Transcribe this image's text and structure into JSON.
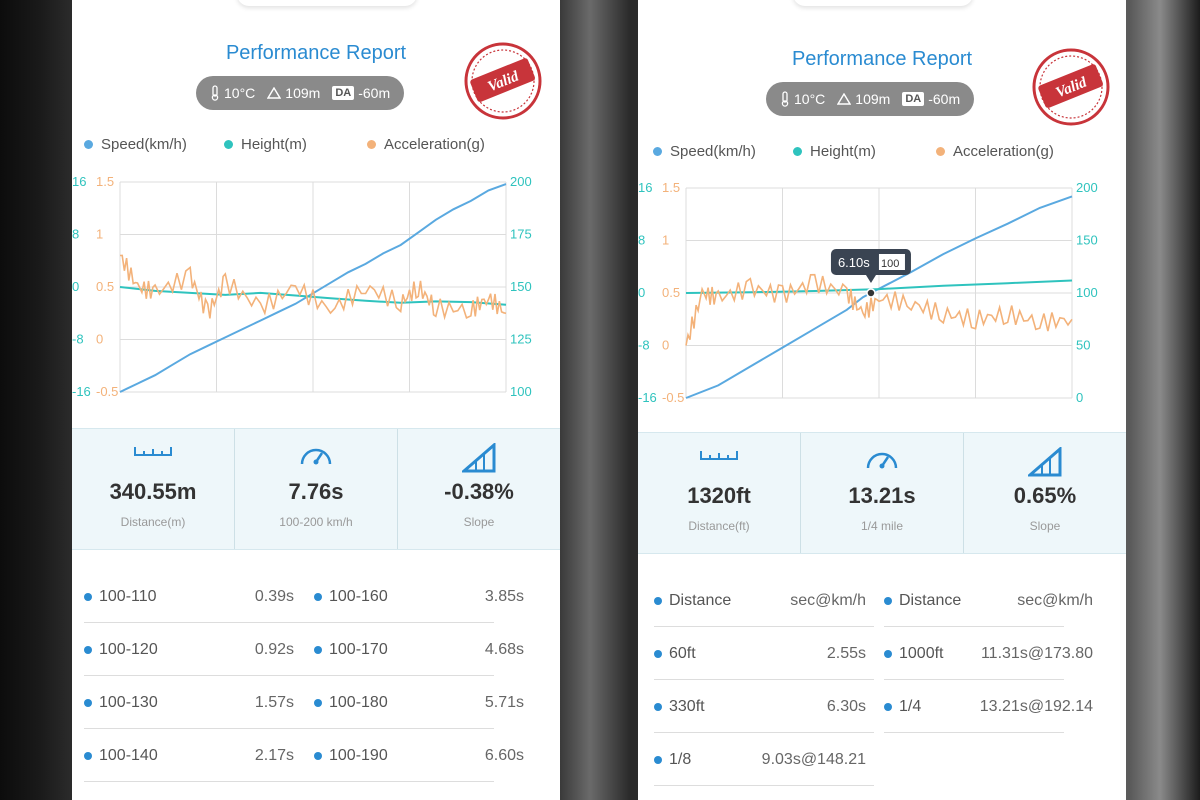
{
  "colors": {
    "speed": "#5aa9e0",
    "height": "#2fc3be",
    "accel": "#f3b27a",
    "title": "#2a8bd1"
  },
  "icons": [
    "thermometer-icon",
    "mountain-icon",
    "ruler-icon",
    "speedometer-icon",
    "slope-icon",
    "valid-stamp-icon"
  ],
  "left": {
    "title": "Performance Report",
    "conditions": {
      "temp": "10°C",
      "altitude": "109m",
      "da_badge": "DA",
      "da_value": "-60m"
    },
    "stamp": "Valid",
    "legend": {
      "speed": "Speed(km/h)",
      "height": "Height(m)",
      "accel": "Acceleration(g)"
    },
    "stats": [
      {
        "value": "340.55m",
        "label": "Distance(m)"
      },
      {
        "value": "7.76s",
        "label": "100-200 km/h"
      },
      {
        "value": "-0.38%",
        "label": "Slope"
      }
    ],
    "rows": [
      {
        "a_label": "100-110",
        "a_val": "0.39s",
        "b_label": "100-160",
        "b_val": "3.85s"
      },
      {
        "a_label": "100-120",
        "a_val": "0.92s",
        "b_label": "100-170",
        "b_val": "4.68s"
      },
      {
        "a_label": "100-130",
        "a_val": "1.57s",
        "b_label": "100-180",
        "b_val": "5.71s"
      },
      {
        "a_label": "100-140",
        "a_val": "2.17s",
        "b_label": "100-190",
        "b_val": "6.60s"
      }
    ]
  },
  "right": {
    "title": "Performance Report",
    "conditions": {
      "temp": "10°C",
      "altitude": "109m",
      "da_badge": "DA",
      "da_value": "-60m"
    },
    "stamp": "Valid",
    "legend": {
      "speed": "Speed(km/h)",
      "height": "Height(m)",
      "accel": "Acceleration(g)"
    },
    "tooltip": {
      "time": "6.10s",
      "speed": "100"
    },
    "stats": [
      {
        "value": "1320ft",
        "label": "Distance(ft)"
      },
      {
        "value": "13.21s",
        "label": "1/4 mile"
      },
      {
        "value": "0.65%",
        "label": "Slope"
      }
    ],
    "header": {
      "a_label": "Distance",
      "a_val": "sec@km/h",
      "b_label": "Distance",
      "b_val": "sec@km/h"
    },
    "rows": [
      {
        "a_label": "60ft",
        "a_val": "2.55s",
        "b_label": "1000ft",
        "b_val": "11.31s@173.80"
      },
      {
        "a_label": "330ft",
        "a_val": "6.30s",
        "b_label": "1/4",
        "b_val": "13.21s@192.14"
      },
      {
        "a_label": "1/8",
        "a_val": "9.03s@148.21",
        "b_label": "",
        "b_val": ""
      }
    ]
  },
  "chart_data": [
    {
      "type": "line",
      "title": "Performance Report (left)",
      "axes": {
        "height_ticks": [
          "16",
          "8",
          "0",
          "-8",
          "-16"
        ],
        "accel_ticks": [
          "1.5",
          "1",
          "0.5",
          "0",
          "-0.5"
        ],
        "speed_ticks": [
          "200",
          "175",
          "150",
          "125",
          "100"
        ],
        "speed_range": [
          100,
          200
        ],
        "height_range": [
          -16,
          16
        ],
        "accel_range": [
          -0.5,
          1.5
        ]
      },
      "series": [
        {
          "name": "Speed(km/h)",
          "color": "#5aa9e0",
          "values": [
            [
              0,
              100
            ],
            [
              0.05,
              104
            ],
            [
              0.1,
              108
            ],
            [
              0.15,
              113
            ],
            [
              0.2,
              118
            ],
            [
              0.25,
              122
            ],
            [
              0.3,
              126
            ],
            [
              0.35,
              130
            ],
            [
              0.4,
              134
            ],
            [
              0.45,
              138
            ],
            [
              0.5,
              142
            ],
            [
              0.55,
              147
            ],
            [
              0.6,
              152
            ],
            [
              0.65,
              157
            ],
            [
              0.7,
              161
            ],
            [
              0.75,
              166
            ],
            [
              0.8,
              170
            ],
            [
              0.85,
              176
            ],
            [
              0.9,
              182
            ],
            [
              0.95,
              187
            ],
            [
              1.0,
              191
            ],
            [
              1.05,
              196
            ],
            [
              1.1,
              199
            ]
          ]
        },
        {
          "name": "Height(m)",
          "color": "#2fc3be",
          "values": [
            [
              0,
              0
            ],
            [
              0.1,
              -0.6
            ],
            [
              0.2,
              -0.9
            ],
            [
              0.3,
              -1.2
            ],
            [
              0.4,
              -0.9
            ],
            [
              0.5,
              -1.3
            ],
            [
              0.6,
              -1.7
            ],
            [
              0.7,
              -2.1
            ],
            [
              0.8,
              -2.4
            ],
            [
              0.9,
              -2.2
            ],
            [
              1.0,
              -2.3
            ],
            [
              1.1,
              -2.7
            ]
          ]
        },
        {
          "name": "Acceleration(g)",
          "color": "#f3b27a",
          "values": [
            [
              0,
              0.8
            ],
            [
              0.05,
              0.5
            ],
            [
              0.1,
              0.45
            ],
            [
              0.2,
              0.6
            ],
            [
              0.25,
              0.25
            ],
            [
              0.3,
              0.55
            ],
            [
              0.4,
              0.3
            ],
            [
              0.5,
              0.5
            ],
            [
              0.6,
              0.28
            ],
            [
              0.7,
              0.5
            ],
            [
              0.8,
              0.35
            ],
            [
              0.85,
              0.5
            ],
            [
              0.9,
              0.3
            ],
            [
              1.0,
              0.28
            ],
            [
              1.05,
              0.4
            ],
            [
              1.1,
              0.25
            ]
          ]
        }
      ]
    },
    {
      "type": "line",
      "title": "Performance Report (right)",
      "axes": {
        "height_ticks": [
          "16",
          "8",
          "0",
          "-8",
          "-16"
        ],
        "accel_ticks": [
          "1.5",
          "1",
          "0.5",
          "0",
          "-0.5"
        ],
        "speed_ticks": [
          "200",
          "150",
          "100",
          "50",
          "0"
        ],
        "speed_range": [
          0,
          200
        ],
        "height_range": [
          -16,
          16
        ],
        "accel_range": [
          -0.5,
          1.5
        ]
      },
      "series": [
        {
          "name": "Speed(km/h)",
          "color": "#5aa9e0",
          "values": [
            [
              0,
              0
            ],
            [
              0.1,
              12
            ],
            [
              0.2,
              30
            ],
            [
              0.3,
              48
            ],
            [
              0.4,
              66
            ],
            [
              0.5,
              84
            ],
            [
              0.55,
              96
            ],
            [
              0.6,
              104
            ],
            [
              0.7,
              120
            ],
            [
              0.8,
              137
            ],
            [
              0.9,
              152
            ],
            [
              1.0,
              166
            ],
            [
              1.1,
              181
            ],
            [
              1.2,
              192
            ]
          ]
        },
        {
          "name": "Height(m)",
          "color": "#2fc3be",
          "values": [
            [
              0,
              0
            ],
            [
              0.2,
              0.1
            ],
            [
              0.4,
              0.3
            ],
            [
              0.6,
              0.6
            ],
            [
              0.8,
              1.1
            ],
            [
              1.0,
              1.5
            ],
            [
              1.2,
              1.9
            ]
          ]
        },
        {
          "name": "Acceleration(g)",
          "color": "#f3b27a",
          "values": [
            [
              0,
              0.0
            ],
            [
              0.05,
              0.5
            ],
            [
              0.1,
              0.45
            ],
            [
              0.2,
              0.55
            ],
            [
              0.3,
              0.48
            ],
            [
              0.4,
              0.6
            ],
            [
              0.5,
              0.5
            ],
            [
              0.55,
              0.3
            ],
            [
              0.6,
              0.45
            ],
            [
              0.7,
              0.4
            ],
            [
              0.8,
              0.3
            ],
            [
              0.9,
              0.25
            ],
            [
              1.0,
              0.3
            ],
            [
              1.1,
              0.22
            ],
            [
              1.2,
              0.25
            ]
          ]
        }
      ]
    }
  ]
}
